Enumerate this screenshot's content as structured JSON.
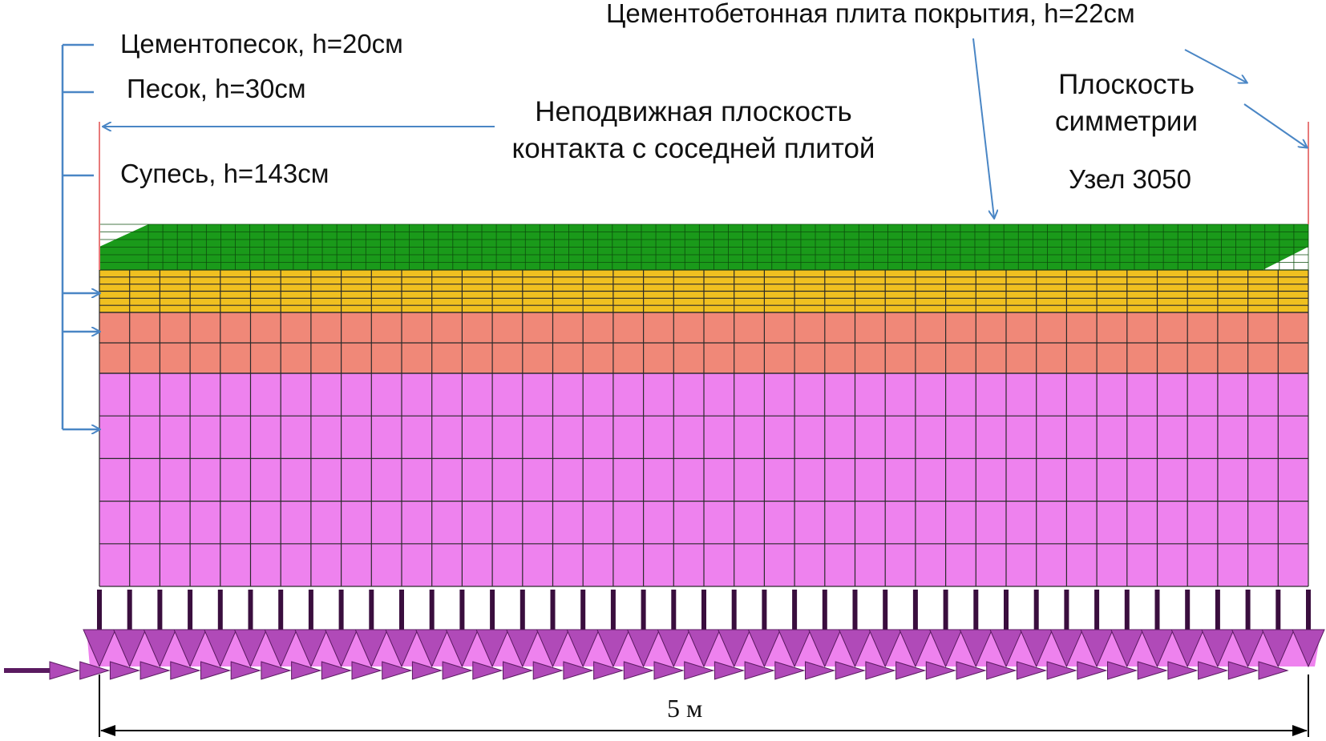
{
  "labels": {
    "top_slab": "Цементобетонная плита покрытия, h=22см",
    "cement_sand": "Цементопесок, h=20см",
    "sand": "Песок, h=30см",
    "sandy_loam": "Супесь, h=143см",
    "fixed_plane_line1": "Неподвижная плоскость",
    "fixed_plane_line2": "контакта с соседней плитой",
    "symmetry_line1": "Плоскость",
    "symmetry_line2": "симметрии",
    "node": "Узел 3050",
    "dimension": "5 м"
  },
  "colors": {
    "slab": "#1a9a1a",
    "cement_sand": "#f0c020",
    "sand": "#f08878",
    "sandy_loam": "#ee82ee",
    "supports": "#b04ab8",
    "mesh_line": "#2a2a2a",
    "arrow": "#4a86c5",
    "contact_line": "#e87a7a"
  },
  "mesh": {
    "columns": 40,
    "slab_columns": 80,
    "slab_rows": 6,
    "cement_sand_rows": 6,
    "sand_rows": 2,
    "sandy_loam_rows": 5
  }
}
